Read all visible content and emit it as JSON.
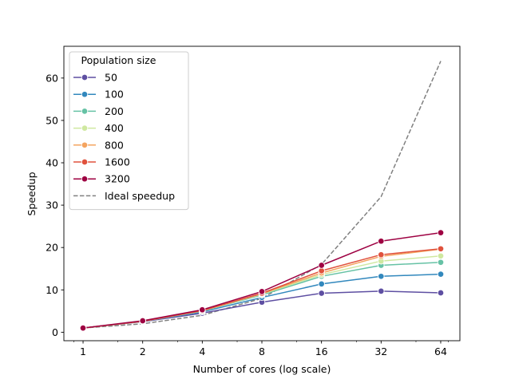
{
  "chart_data": {
    "type": "line",
    "title": "",
    "xlabel": "Number of cores (log scale)",
    "ylabel": "Speedup",
    "x": [
      1,
      2,
      4,
      8,
      16,
      32,
      64
    ],
    "x_scale": "log2",
    "xlim": [
      0.8,
      80
    ],
    "ylim": [
      -2,
      67.5
    ],
    "x_ticks": [
      1,
      2,
      4,
      8,
      16,
      32,
      64
    ],
    "y_ticks": [
      0,
      10,
      20,
      30,
      40,
      50,
      60
    ],
    "grid": false,
    "legend": {
      "title": "Population size",
      "placement": "top-left"
    },
    "series": [
      {
        "name": "50",
        "color": "#5e4fa2",
        "values": [
          1.0,
          2.5,
          4.5,
          7.1,
          9.2,
          9.7,
          9.3
        ]
      },
      {
        "name": "100",
        "color": "#3288bd",
        "values": [
          1.0,
          2.6,
          4.8,
          8.2,
          11.4,
          13.2,
          13.7
        ]
      },
      {
        "name": "200",
        "color": "#66c2a5",
        "values": [
          1.0,
          2.6,
          5.0,
          8.8,
          13.2,
          15.8,
          16.5
        ]
      },
      {
        "name": "400",
        "color": "#cfe8a0",
        "values": [
          1.0,
          2.6,
          5.0,
          9.0,
          13.6,
          16.8,
          18.0
        ]
      },
      {
        "name": "800",
        "color": "#f4a460",
        "values": [
          1.0,
          2.6,
          5.1,
          9.1,
          14.0,
          17.9,
          19.6
        ]
      },
      {
        "name": "1600",
        "color": "#e0523d",
        "values": [
          1.0,
          2.6,
          5.1,
          9.2,
          14.5,
          18.3,
          19.7
        ]
      },
      {
        "name": "3200",
        "color": "#9e0142",
        "values": [
          1.0,
          2.7,
          5.3,
          9.6,
          15.8,
          21.5,
          23.5
        ]
      },
      {
        "name": "Ideal speedup",
        "color": "#808080",
        "dashed": true,
        "markers": false,
        "values": [
          1,
          2,
          4,
          8,
          16,
          32,
          64
        ]
      }
    ]
  }
}
